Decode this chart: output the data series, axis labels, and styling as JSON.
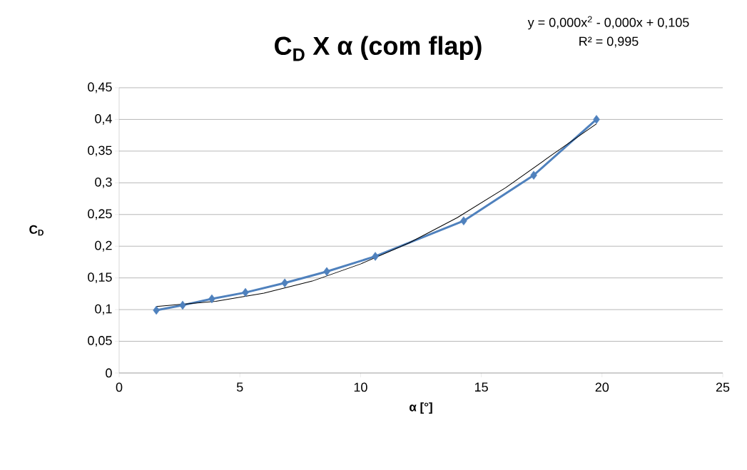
{
  "chart_data": {
    "type": "line",
    "title": "C$_{D}$ X α (com flap)",
    "xlabel": "α [°]",
    "ylabel": "C$_{D}$",
    "annotations": [
      "y = 0,000x$^{2}$ - 0,000x + 0,105",
      "R² = 0,995"
    ],
    "series": [
      {
        "color": "#4f81bd",
        "marker": "diamond",
        "x": [
          1.54,
          2.63,
          3.84,
          5.23,
          6.86,
          8.6,
          10.61,
          14.27,
          17.17,
          19.77
        ],
        "values": [
          0.099,
          0.107,
          0.117,
          0.127,
          0.142,
          0.16,
          0.184,
          0.24,
          0.312,
          0.4
        ]
      },
      {
        "color": "#000000",
        "marker": "none",
        "x": [
          1.54,
          4,
          6,
          8,
          10,
          12,
          14,
          16,
          18,
          19.77
        ],
        "values": [
          0.105,
          0.113,
          0.126,
          0.145,
          0.172,
          0.205,
          0.245,
          0.292,
          0.346,
          0.393
        ]
      }
    ],
    "xlim": [
      0,
      25
    ],
    "ylim": [
      0,
      0.45
    ],
    "xticks": [
      0,
      5,
      10,
      15,
      20,
      25
    ],
    "yticks": [
      0,
      {
        "value": 0.05,
        "label": "0,05"
      },
      {
        "value": 0.1,
        "label": "0,1"
      },
      {
        "value": 0.15,
        "label": "0,15"
      },
      {
        "value": 0.2,
        "label": "0,2"
      },
      {
        "value": 0.25,
        "label": "0,25"
      },
      {
        "value": 0.3,
        "label": "0,3"
      },
      {
        "value": 0.35,
        "label": "0,35"
      },
      {
        "value": 0.4,
        "label": "0,4"
      },
      {
        "value": 0.45,
        "label": "0,45"
      }
    ],
    "grid": "y"
  }
}
